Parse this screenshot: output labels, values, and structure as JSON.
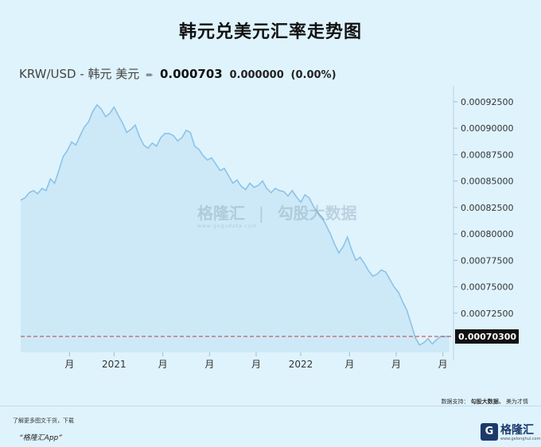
{
  "header": {
    "title": "韩元兑美元汇率走势图"
  },
  "quote": {
    "pair": "KRW/USD - 韩元 美元",
    "arrow_icon": "arrow-right-icon",
    "price": "0.000703",
    "change": "0.000000",
    "change_pct": "(0.00%)"
  },
  "watermark": {
    "brand": "格隆汇",
    "separator": "|",
    "data_brand": "勾股大数据",
    "site": "www.gogudata.com"
  },
  "chart_data": {
    "type": "area",
    "title": "",
    "xlabel": "",
    "ylabel": "",
    "ylim": [
      0.000688,
      0.00094
    ],
    "y_ticks": [
      "0.00092500",
      "0.00090000",
      "0.00087500",
      "0.00085000",
      "0.00082500",
      "0.00080000",
      "0.00077500",
      "0.00075000",
      "0.00072500"
    ],
    "y_tick_values": [
      0.000925,
      0.0009,
      0.000875,
      0.00085,
      0.000825,
      0.0008,
      0.000775,
      0.00075,
      0.000725
    ],
    "x_tick_labels": [
      "月",
      "2021",
      "月",
      "月",
      "月",
      "2022",
      "月",
      "月",
      "月"
    ],
    "x_tick_positions": [
      11.5,
      22,
      33.5,
      44.5,
      55.5,
      66,
      77.5,
      88.5,
      99.5
    ],
    "x_range": [
      0,
      102
    ],
    "current_value": 0.000703,
    "current_label": "0.00070300",
    "colors": {
      "line": "#8cc3e8",
      "fill": "#cbe8f6",
      "reference": "#c23b3b",
      "label_bg": "#111111"
    },
    "x": [
      0,
      1,
      2,
      3,
      4,
      5,
      6,
      7,
      8,
      9,
      10,
      11,
      12,
      13,
      14,
      15,
      16,
      17,
      18,
      19,
      20,
      21,
      22,
      23,
      24,
      25,
      26,
      27,
      28,
      29,
      30,
      31,
      32,
      33,
      34,
      35,
      36,
      37,
      38,
      39,
      40,
      41,
      42,
      43,
      44,
      45,
      46,
      47,
      48,
      49,
      50,
      51,
      52,
      53,
      54,
      55,
      56,
      57,
      58,
      59,
      60,
      61,
      62,
      63,
      64,
      65,
      66,
      67,
      68,
      69,
      70,
      71,
      72,
      73,
      74,
      75,
      76,
      77,
      78,
      79,
      80,
      81,
      82,
      83,
      84,
      85,
      86,
      87,
      88,
      89,
      90,
      91,
      92,
      93,
      94,
      95,
      96,
      97,
      98,
      99,
      100,
      101
    ],
    "values": [
      0.000832,
      0.000834,
      0.000839,
      0.000841,
      0.000838,
      0.000843,
      0.000841,
      0.000852,
      0.000848,
      0.00086,
      0.000873,
      0.000879,
      0.000887,
      0.000884,
      0.000893,
      0.000901,
      0.000906,
      0.000916,
      0.000922,
      0.000918,
      0.000911,
      0.000914,
      0.00092,
      0.000912,
      0.000905,
      0.000896,
      0.000899,
      0.000903,
      0.000892,
      0.000884,
      0.000881,
      0.000886,
      0.000883,
      0.000891,
      0.000895,
      0.000895,
      0.000893,
      0.000888,
      0.000891,
      0.000898,
      0.000896,
      0.000883,
      0.00088,
      0.000874,
      0.00087,
      0.000872,
      0.000866,
      0.00086,
      0.000862,
      0.000855,
      0.000848,
      0.000851,
      0.000845,
      0.000842,
      0.000848,
      0.000844,
      0.000846,
      0.00085,
      0.000843,
      0.000839,
      0.000843,
      0.000841,
      0.00084,
      0.000836,
      0.000841,
      0.000835,
      0.00083,
      0.000837,
      0.000834,
      0.000826,
      0.00082,
      0.000816,
      0.000808,
      0.0008,
      0.00079,
      0.000782,
      0.000788,
      0.000797,
      0.000785,
      0.000775,
      0.000778,
      0.000772,
      0.000765,
      0.00076,
      0.000762,
      0.000766,
      0.000764,
      0.000757,
      0.00075,
      0.000745,
      0.000736,
      0.000728,
      0.000715,
      0.000702,
      0.000695,
      0.000697,
      0.000701,
      0.000696,
      0.0007,
      0.000703,
      0.000703,
      0.000703
    ]
  },
  "footer": {
    "support_label": "数据支持：",
    "support_brand": "勾股大数据、",
    "support_extra": "美为才情",
    "note": "了解更多图文干货，下载",
    "app_name": "“格隆汇App”",
    "logo_mark": "G",
    "logo_text": "格隆汇",
    "logo_site": "www.gelonghui.com"
  }
}
